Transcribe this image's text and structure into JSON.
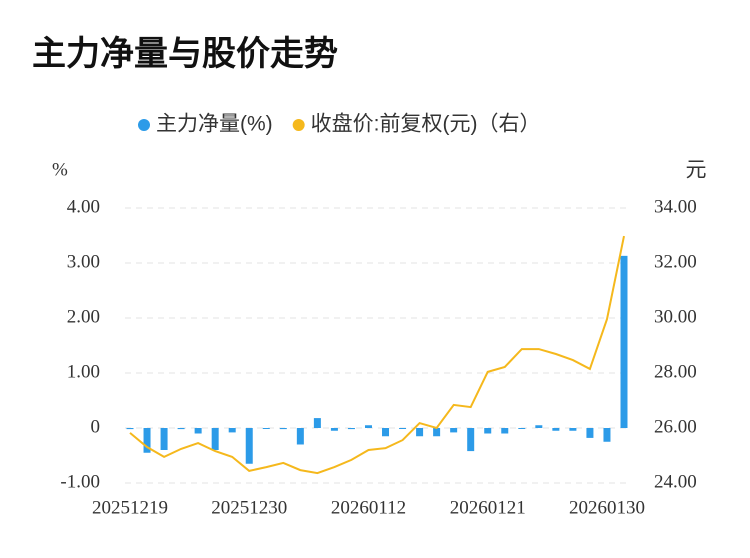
{
  "chart_data": {
    "type": "bar-line",
    "title": "主力净量与股价走势",
    "y_label": "%",
    "y2_label": "元",
    "categories": [
      "20251219",
      null,
      null,
      null,
      null,
      null,
      null,
      "20251230",
      null,
      null,
      null,
      null,
      null,
      null,
      "20260112",
      null,
      null,
      null,
      null,
      null,
      null,
      "20260121",
      null,
      null,
      null,
      null,
      null,
      null,
      "20260130",
      null
    ],
    "series": [
      {
        "name": "主力净量(%)",
        "type": "bar",
        "color": "#2c9be8",
        "values": [
          -0.02,
          -0.45,
          -0.4,
          -0.02,
          -0.1,
          -0.4,
          -0.08,
          -0.65,
          -0.01,
          -0.02,
          -0.3,
          0.18,
          -0.05,
          -0.02,
          0.05,
          -0.15,
          0.0,
          -0.15,
          -0.15,
          -0.08,
          -0.42,
          -0.1,
          -0.1,
          0.0,
          0.05,
          -0.05,
          -0.05,
          -0.18,
          -0.25,
          3.13
        ]
      },
      {
        "name": "收盘价:前复权(元)（右）",
        "type": "line",
        "axis": "y2",
        "color": "#f5b81c",
        "values": [
          25.82,
          25.31,
          24.95,
          25.24,
          25.45,
          25.16,
          24.95,
          24.44,
          24.58,
          24.73,
          24.47,
          24.36,
          24.58,
          24.84,
          25.2,
          25.27,
          25.56,
          26.18,
          26.0,
          26.84,
          26.76,
          28.04,
          28.22,
          28.87,
          28.87,
          28.69,
          28.47,
          28.15,
          29.96,
          32.98
        ]
      }
    ],
    "ylim": [
      -1,
      4
    ],
    "yticks": [
      {
        "value": -1,
        "label": "-1.00"
      },
      0,
      {
        "value": 1,
        "label": "1.00"
      },
      {
        "value": 2,
        "label": "2.00"
      },
      {
        "value": 3,
        "label": "3.00"
      },
      {
        "value": 4,
        "label": "4.00"
      }
    ],
    "y2lim": [
      24,
      34
    ],
    "y2ticks": [
      {
        "value": 24,
        "label": "24.00"
      },
      {
        "value": 26,
        "label": "26.00"
      },
      {
        "value": 28,
        "label": "28.00"
      },
      {
        "value": 30,
        "label": "30.00"
      },
      {
        "value": 32,
        "label": "32.00"
      },
      {
        "value": 34,
        "label": "34.00"
      }
    ],
    "grid": true,
    "legend": "top"
  }
}
